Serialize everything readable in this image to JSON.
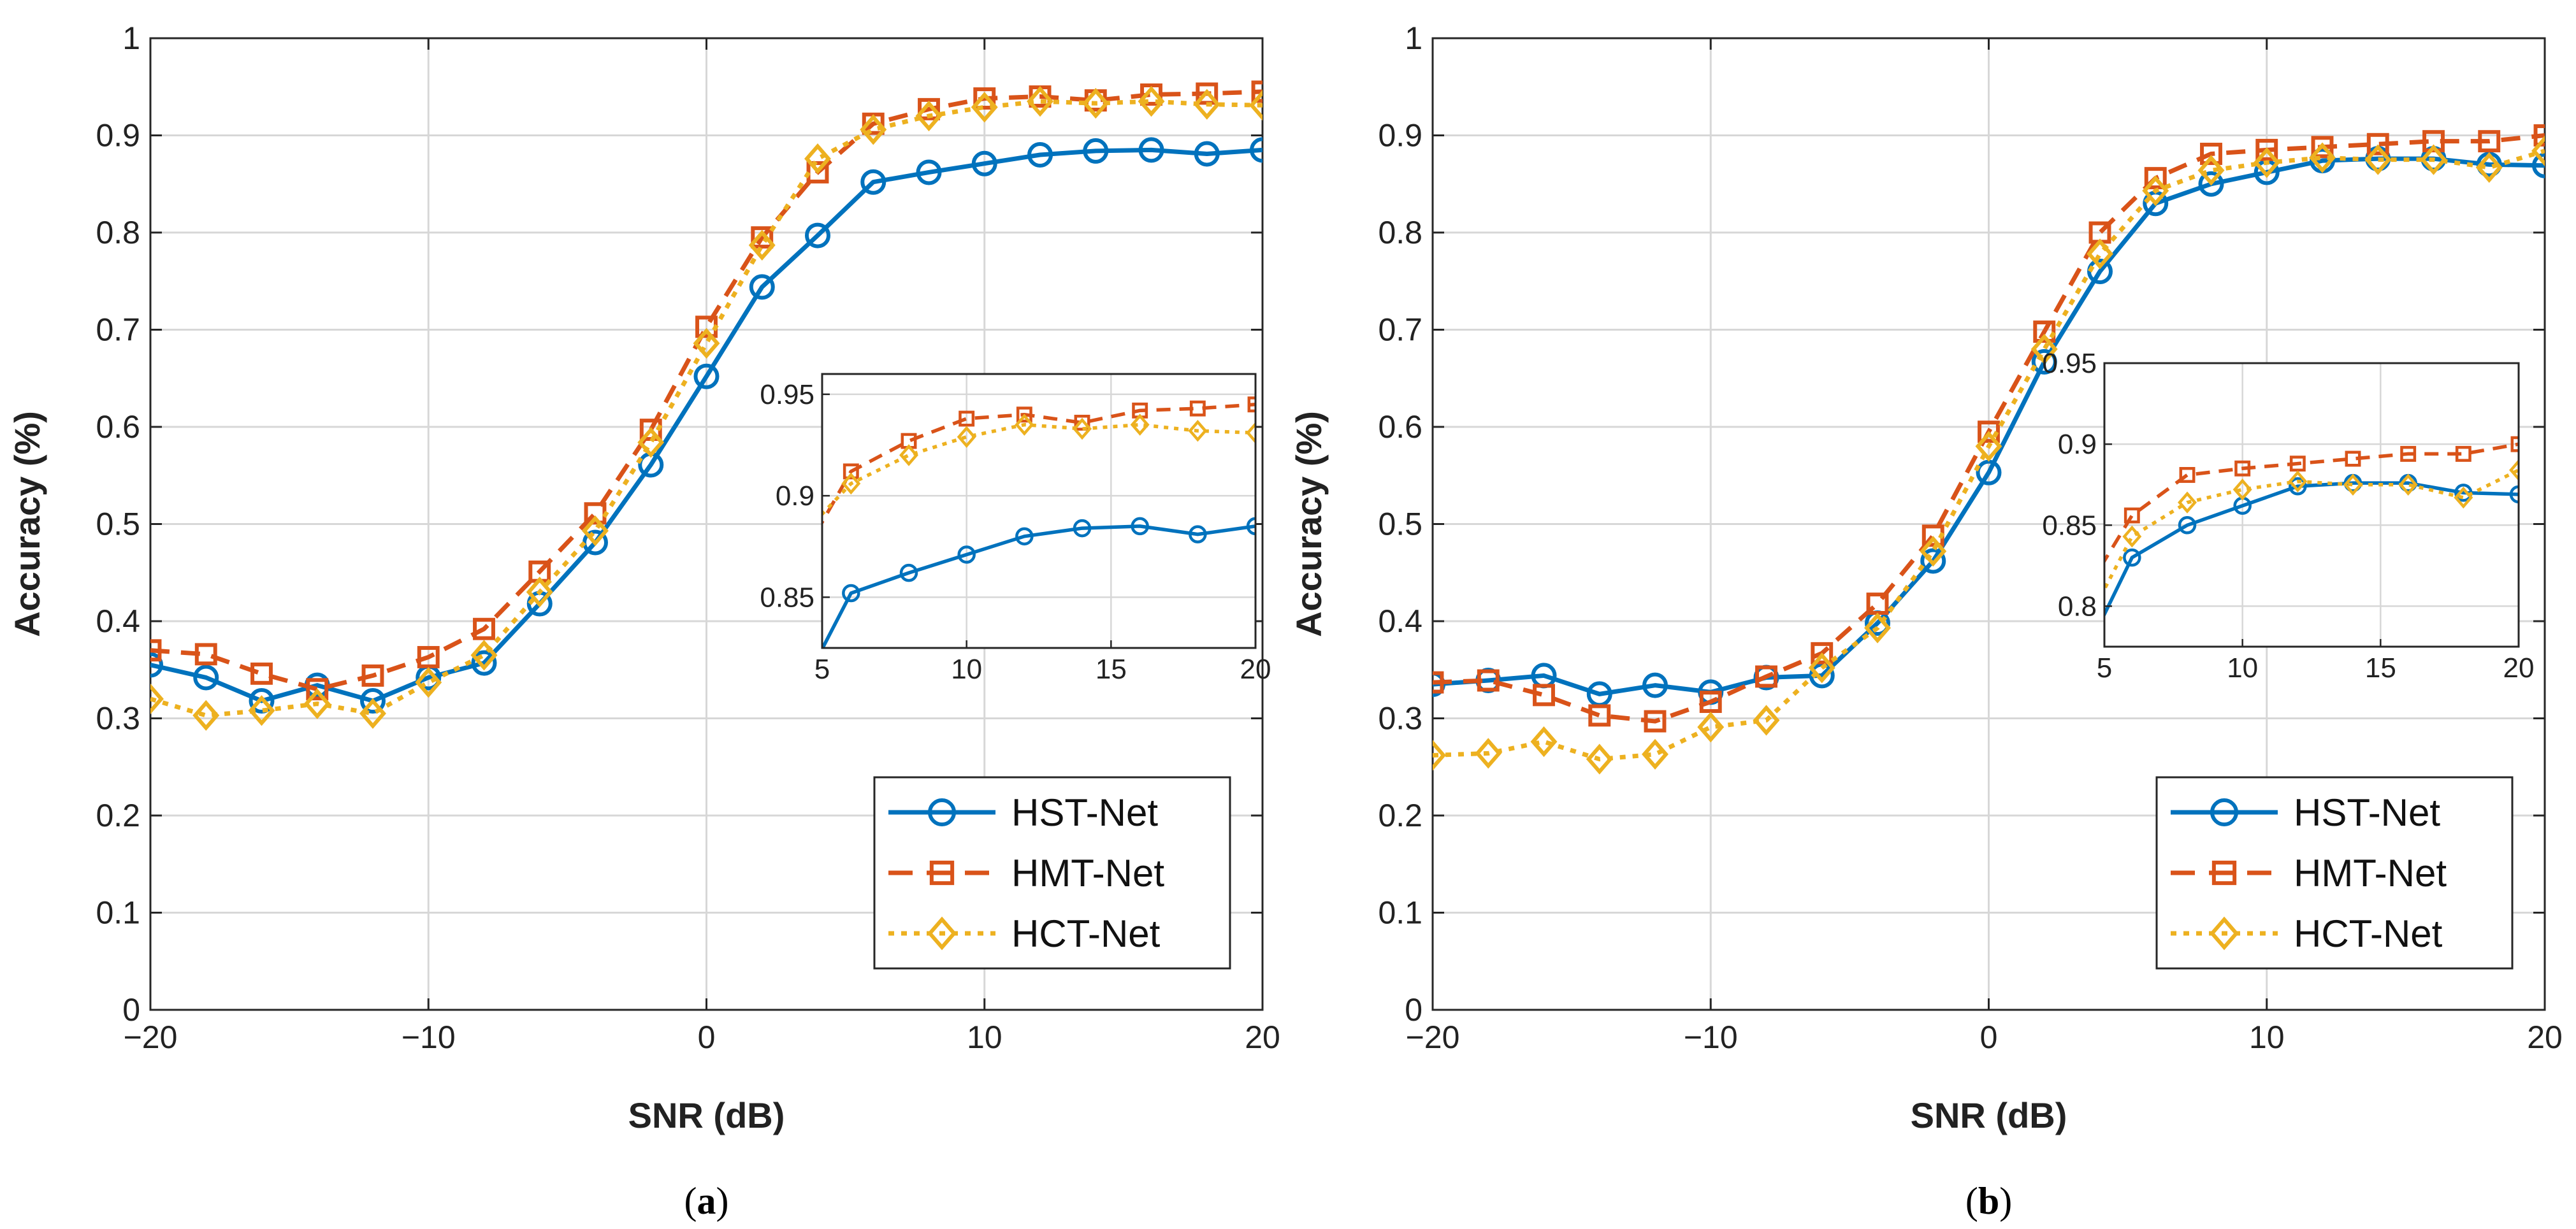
{
  "colors": {
    "hst": "#0072BD",
    "hmt": "#D95319",
    "hct": "#EDB120",
    "grid": "#d7d7d7",
    "axis": "#262626"
  },
  "chart_data": [
    {
      "panel": "a",
      "label_open": "(",
      "label_letter": "a",
      "label_close": ")",
      "type": "line",
      "xlabel": "SNR (dB)",
      "ylabel": "Accuracy (%)",
      "xlim": [
        -20,
        20
      ],
      "ylim": [
        0,
        1
      ],
      "xticks": [
        -20,
        -10,
        0,
        10,
        20
      ],
      "xtick_labels": [
        "−20",
        "−10",
        "0",
        "10",
        "20"
      ],
      "yticks": [
        0,
        0.1,
        0.2,
        0.3,
        0.4,
        0.5,
        0.6,
        0.7,
        0.8,
        0.9,
        1
      ],
      "ytick_labels": [
        "0",
        "0.1",
        "0.2",
        "0.3",
        "0.4",
        "0.5",
        "0.6",
        "0.7",
        "0.8",
        "0.9",
        "1"
      ],
      "grid": true,
      "legend_position": "bottom-right",
      "x": [
        -20,
        -18,
        -16,
        -14,
        -12,
        -10,
        -8,
        -6,
        -4,
        -2,
        0,
        2,
        4,
        6,
        8,
        10,
        12,
        14,
        16,
        18,
        20
      ],
      "series": [
        {
          "name": "HST-Net",
          "style": "solid",
          "marker": "circle",
          "values": [
            0.355,
            0.342,
            0.318,
            0.334,
            0.318,
            0.342,
            0.357,
            0.418,
            0.481,
            0.561,
            0.652,
            0.744,
            0.797,
            0.852,
            0.862,
            0.871,
            0.88,
            0.884,
            0.885,
            0.881,
            0.885
          ]
        },
        {
          "name": "HMT-Net",
          "style": "dashed",
          "marker": "square",
          "values": [
            0.37,
            0.366,
            0.346,
            0.33,
            0.344,
            0.363,
            0.392,
            0.451,
            0.511,
            0.597,
            0.703,
            0.795,
            0.862,
            0.912,
            0.927,
            0.938,
            0.94,
            0.936,
            0.942,
            0.943,
            0.945
          ]
        },
        {
          "name": "HCT-Net",
          "style": "dotted",
          "marker": "diamond",
          "values": [
            0.32,
            0.303,
            0.308,
            0.315,
            0.305,
            0.337,
            0.365,
            0.43,
            0.493,
            0.584,
            0.686,
            0.787,
            0.876,
            0.906,
            0.92,
            0.929,
            0.935,
            0.933,
            0.935,
            0.932,
            0.931
          ]
        }
      ],
      "inset": {
        "xlim": [
          5,
          20
        ],
        "ylim": [
          0.825,
          0.96
        ],
        "xticks": [
          5,
          10,
          15,
          20
        ],
        "xtick_labels": [
          "5",
          "10",
          "15",
          "20"
        ],
        "yticks": [
          0.85,
          0.9,
          0.95
        ],
        "ytick_labels": [
          "0.85",
          "0.9",
          "0.95"
        ]
      }
    },
    {
      "panel": "b",
      "label_open": "(",
      "label_letter": "b",
      "label_close": ")",
      "type": "line",
      "xlabel": "SNR (dB)",
      "ylabel": "Accuracy (%)",
      "xlim": [
        -20,
        20
      ],
      "ylim": [
        0,
        1
      ],
      "xticks": [
        -20,
        -10,
        0,
        10,
        20
      ],
      "xtick_labels": [
        "−20",
        "−10",
        "0",
        "10",
        "20"
      ],
      "yticks": [
        0,
        0.1,
        0.2,
        0.3,
        0.4,
        0.5,
        0.6,
        0.7,
        0.8,
        0.9,
        1
      ],
      "ytick_labels": [
        "0",
        "0.1",
        "0.2",
        "0.3",
        "0.4",
        "0.5",
        "0.6",
        "0.7",
        "0.8",
        "0.9",
        "1"
      ],
      "grid": true,
      "legend_position": "bottom-right",
      "x": [
        -20,
        -18,
        -16,
        -14,
        -12,
        -10,
        -8,
        -6,
        -4,
        -2,
        0,
        2,
        4,
        6,
        8,
        10,
        12,
        14,
        16,
        18,
        20
      ],
      "series": [
        {
          "name": "HST-Net",
          "style": "solid",
          "marker": "circle",
          "values": [
            0.335,
            0.339,
            0.344,
            0.325,
            0.334,
            0.327,
            0.342,
            0.344,
            0.398,
            0.462,
            0.553,
            0.667,
            0.76,
            0.83,
            0.85,
            0.862,
            0.874,
            0.876,
            0.876,
            0.87,
            0.869
          ]
        },
        {
          "name": "HMT-Net",
          "style": "dashed",
          "marker": "square",
          "values": [
            0.337,
            0.339,
            0.324,
            0.303,
            0.297,
            0.317,
            0.343,
            0.367,
            0.418,
            0.488,
            0.595,
            0.698,
            0.8,
            0.856,
            0.881,
            0.885,
            0.888,
            0.891,
            0.894,
            0.894,
            0.9
          ]
        },
        {
          "name": "HCT-Net",
          "style": "dotted",
          "marker": "diamond",
          "values": [
            0.262,
            0.264,
            0.276,
            0.258,
            0.263,
            0.291,
            0.298,
            0.352,
            0.393,
            0.472,
            0.58,
            0.68,
            0.778,
            0.843,
            0.864,
            0.872,
            0.877,
            0.875,
            0.875,
            0.867,
            0.884
          ]
        }
      ],
      "inset": {
        "xlim": [
          5,
          20
        ],
        "ylim": [
          0.775,
          0.95
        ],
        "xticks": [
          5,
          10,
          15,
          20
        ],
        "xtick_labels": [
          "5",
          "10",
          "15",
          "20"
        ],
        "yticks": [
          0.8,
          0.85,
          0.9,
          0.95
        ],
        "ytick_labels": [
          "0.8",
          "0.85",
          "0.9",
          "0.95"
        ]
      }
    }
  ]
}
